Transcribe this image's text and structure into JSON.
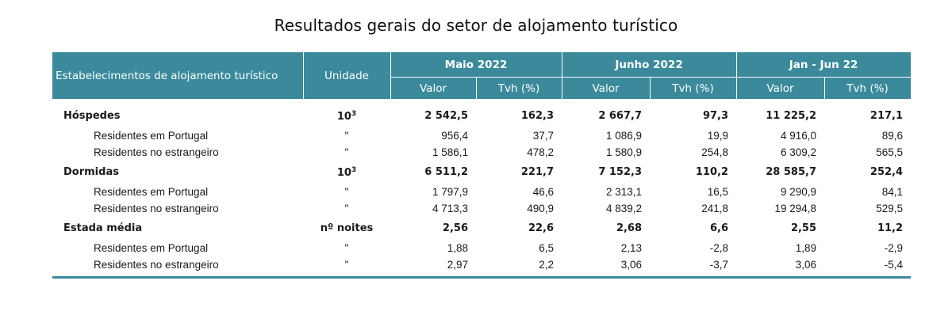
{
  "title": "Resultados gerais do setor de alojamento turístico",
  "header": {
    "col0": "Estabelecimentos de alojamento turístico",
    "col1": "Unidade",
    "groups": [
      "Maio 2022",
      "Junho 2022",
      "Jan - Jun 22"
    ],
    "sub": [
      "Valor",
      "Tvh (%)"
    ]
  },
  "rows": [
    {
      "label": "Hóspedes",
      "unit_base": "10",
      "unit_sup": "3",
      "v": [
        "2 542,5",
        "162,3",
        "2 667,7",
        "97,3",
        "11 225,2",
        "217,1"
      ]
    },
    {
      "label": "Residentes em Portugal",
      "unit": "\"",
      "v": [
        "956,4",
        "37,7",
        "1 086,9",
        "19,9",
        "4 916,0",
        "89,6"
      ]
    },
    {
      "label": "Residentes no estrangeiro",
      "unit": "\"",
      "v": [
        "1 586,1",
        "478,2",
        "1 580,9",
        "254,8",
        "6 309,2",
        "565,5"
      ]
    },
    {
      "label": "Dormidas",
      "unit_base": "10",
      "unit_sup": "3",
      "v": [
        "6 511,2",
        "221,7",
        "7 152,3",
        "110,2",
        "28 585,7",
        "252,4"
      ]
    },
    {
      "label": "Residentes em Portugal",
      "unit": "\"",
      "v": [
        "1 797,9",
        "46,6",
        "2 313,1",
        "16,5",
        "9 290,9",
        "84,1"
      ]
    },
    {
      "label": "Residentes no estrangeiro",
      "unit": "\"",
      "v": [
        "4 713,3",
        "490,9",
        "4 839,2",
        "241,8",
        "19 294,8",
        "529,5"
      ]
    },
    {
      "label": "Estada média",
      "unit": "nº noites",
      "v": [
        "2,56",
        "22,6",
        "2,68",
        "6,6",
        "2,55",
        "11,2"
      ]
    },
    {
      "label": "Residentes em Portugal",
      "unit": "\"",
      "v": [
        "1,88",
        "6,5",
        "2,13",
        "-2,8",
        "1,89",
        "-2,9"
      ]
    },
    {
      "label": "Residentes no estrangeiro",
      "unit": "\"",
      "v": [
        "2,97",
        "2,2",
        "3,06",
        "-3,7",
        "3,06",
        "-5,4"
      ]
    }
  ]
}
